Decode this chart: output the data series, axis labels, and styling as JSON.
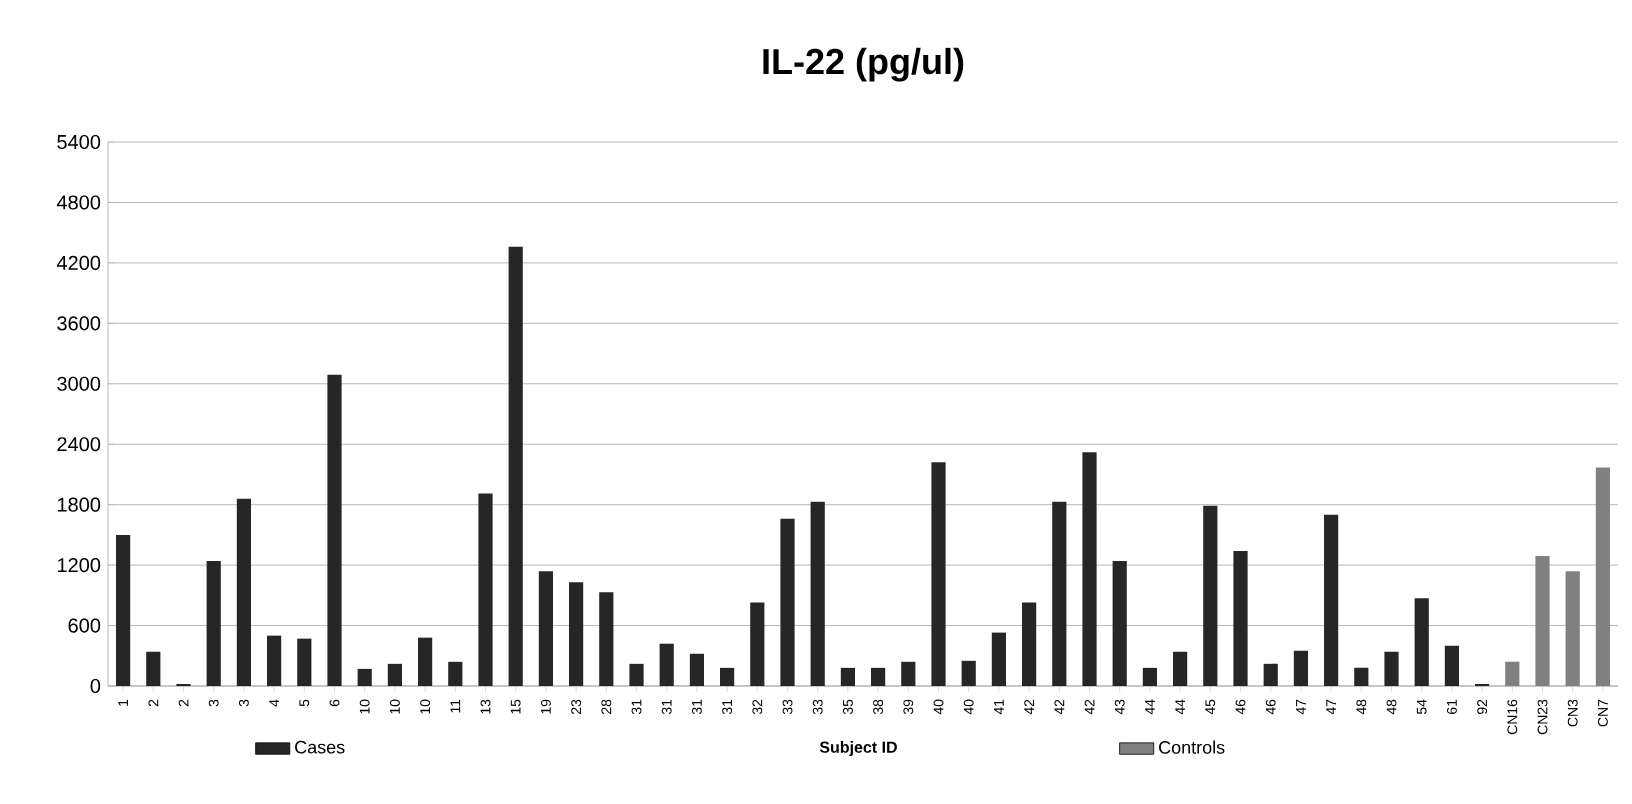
{
  "chart_data": {
    "type": "bar",
    "title": "IL-22  (pg/ul)",
    "xlabel": "Subject ID",
    "categories": [
      "1",
      "2",
      "2",
      "3",
      "3",
      "4",
      "5",
      "6",
      "10",
      "10",
      "10",
      "11",
      "13",
      "15",
      "19",
      "23",
      "28",
      "31",
      "31",
      "31",
      "31",
      "32",
      "33",
      "33",
      "35",
      "38",
      "39",
      "40",
      "40",
      "41",
      "42",
      "42",
      "42",
      "43",
      "44",
      "44",
      "45",
      "46",
      "46",
      "47",
      "47",
      "48",
      "48",
      "54",
      "61",
      "92",
      "CN16",
      "CN23",
      "CN3",
      "CN7"
    ],
    "series": [
      {
        "name": "Cases",
        "color": "#262626",
        "values": [
          1500,
          340,
          20,
          1240,
          1860,
          500,
          470,
          3090,
          170,
          220,
          480,
          240,
          1910,
          4360,
          1140,
          1030,
          930,
          220,
          420,
          320,
          180,
          830,
          1660,
          1830,
          180,
          180,
          240,
          2220,
          250,
          530,
          830,
          1830,
          2320,
          1240,
          180,
          340,
          1790,
          1340,
          220,
          350,
          1700,
          180,
          340,
          870,
          400,
          20,
          null,
          null,
          null,
          null
        ]
      },
      {
        "name": "Controls",
        "color": "#808080",
        "values": [
          null,
          null,
          null,
          null,
          null,
          null,
          null,
          null,
          null,
          null,
          null,
          null,
          null,
          null,
          null,
          null,
          null,
          null,
          null,
          null,
          null,
          null,
          null,
          null,
          null,
          null,
          null,
          null,
          null,
          null,
          null,
          null,
          null,
          null,
          null,
          null,
          null,
          null,
          null,
          null,
          null,
          null,
          null,
          null,
          null,
          null,
          240,
          1290,
          1140,
          2170
        ]
      }
    ],
    "ylim": [
      0,
      5400
    ],
    "yticks": [
      0,
      600,
      1200,
      1800,
      2400,
      3000,
      3600,
      4200,
      4800,
      5400
    ],
    "grid": "y",
    "legend": "bottom"
  }
}
